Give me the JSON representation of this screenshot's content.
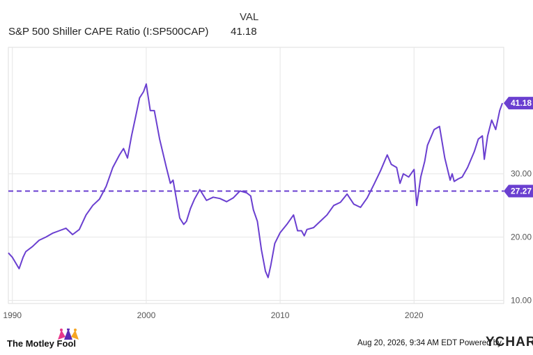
{
  "legend": {
    "header": "VAL",
    "series_name": "S&P 500 Shiller CAPE Ratio (I:SP500CAP)",
    "series_value": "41.18"
  },
  "footer": {
    "brand": "The Motley Fool",
    "timestamp": "Aug 20, 2026, 9:34 AM EDT Powered by",
    "powered_by_logo": "YCHARTS"
  },
  "colors": {
    "series": "#6a3fd0",
    "grid": "#e6e6e6",
    "axis_text": "#555555"
  },
  "chart_data": {
    "type": "line",
    "title": "",
    "xlabel": "",
    "ylabel": "",
    "x_ticks": [
      "1990",
      "2000",
      "2010",
      "2020"
    ],
    "y_ticks": [
      "10.00",
      "20.00",
      "30.00"
    ],
    "xlim": [
      1989.7,
      2026.7
    ],
    "ylim": [
      9.5,
      50.0
    ],
    "grid": true,
    "reference_line": {
      "value": 27.27,
      "label": "27.27",
      "style": "dashed"
    },
    "last_value_label": "41.18",
    "series": [
      {
        "x": [
          1989.7,
          1990.0,
          1990.5,
          1990.8,
          1991.0,
          1991.5,
          1992.0,
          1992.5,
          1993.0,
          1993.5,
          1994.0,
          1994.5,
          1995.0,
          1995.5,
          1996.0,
          1996.5,
          1997.0,
          1997.5,
          1998.0,
          1998.3,
          1998.6,
          1998.9,
          1999.2,
          1999.5,
          1999.8,
          2000.0,
          2000.3,
          2000.6,
          2001.0,
          2001.5,
          2001.8,
          2002.0,
          2002.5,
          2002.8,
          2003.0,
          2003.3,
          2003.6,
          2004.0,
          2004.5,
          2005.0,
          2005.5,
          2006.0,
          2006.5,
          2007.0,
          2007.5,
          2007.8,
          2008.0,
          2008.3,
          2008.6,
          2008.9,
          2009.1,
          2009.3,
          2009.6,
          2010.0,
          2010.5,
          2011.0,
          2011.3,
          2011.6,
          2011.8,
          2012.0,
          2012.5,
          2013.0,
          2013.5,
          2014.0,
          2014.5,
          2015.0,
          2015.5,
          2016.0,
          2016.5,
          2017.0,
          2017.5,
          2018.0,
          2018.3,
          2018.7,
          2018.95,
          2019.2,
          2019.6,
          2020.0,
          2020.2,
          2020.5,
          2020.8,
          2021.0,
          2021.5,
          2021.9,
          2022.3,
          2022.7,
          2022.85,
          2023.0,
          2023.3,
          2023.6,
          2024.0,
          2024.5,
          2024.8,
          2025.1,
          2025.25,
          2025.5,
          2025.8,
          2026.1,
          2026.4,
          2026.6
        ],
        "y": [
          17.5,
          16.8,
          15.0,
          16.8,
          17.7,
          18.5,
          19.5,
          20.0,
          20.6,
          21.0,
          21.4,
          20.4,
          21.2,
          23.5,
          25.0,
          26.0,
          28.0,
          31.0,
          33.0,
          34.0,
          32.5,
          36.0,
          39.0,
          42.0,
          43.0,
          44.2,
          40.0,
          40.0,
          35.5,
          31.0,
          28.5,
          29.0,
          23.0,
          22.0,
          22.5,
          24.5,
          26.0,
          27.5,
          25.8,
          26.3,
          26.1,
          25.6,
          26.2,
          27.3,
          27.0,
          26.5,
          24.3,
          22.5,
          18.0,
          14.6,
          13.6,
          15.5,
          19.0,
          20.7,
          22.0,
          23.5,
          21.0,
          21.0,
          20.2,
          21.2,
          21.5,
          22.5,
          23.5,
          25.0,
          25.5,
          26.8,
          25.2,
          24.7,
          26.2,
          28.3,
          30.5,
          33.0,
          31.5,
          31.0,
          28.5,
          30.0,
          29.5,
          30.7,
          25.0,
          29.5,
          32.0,
          34.5,
          37.0,
          37.5,
          32.5,
          29.0,
          30.0,
          28.8,
          29.2,
          29.5,
          31.0,
          33.5,
          35.5,
          36.0,
          32.3,
          36.0,
          38.5,
          37.0,
          40.0,
          41.18
        ]
      }
    ]
  }
}
